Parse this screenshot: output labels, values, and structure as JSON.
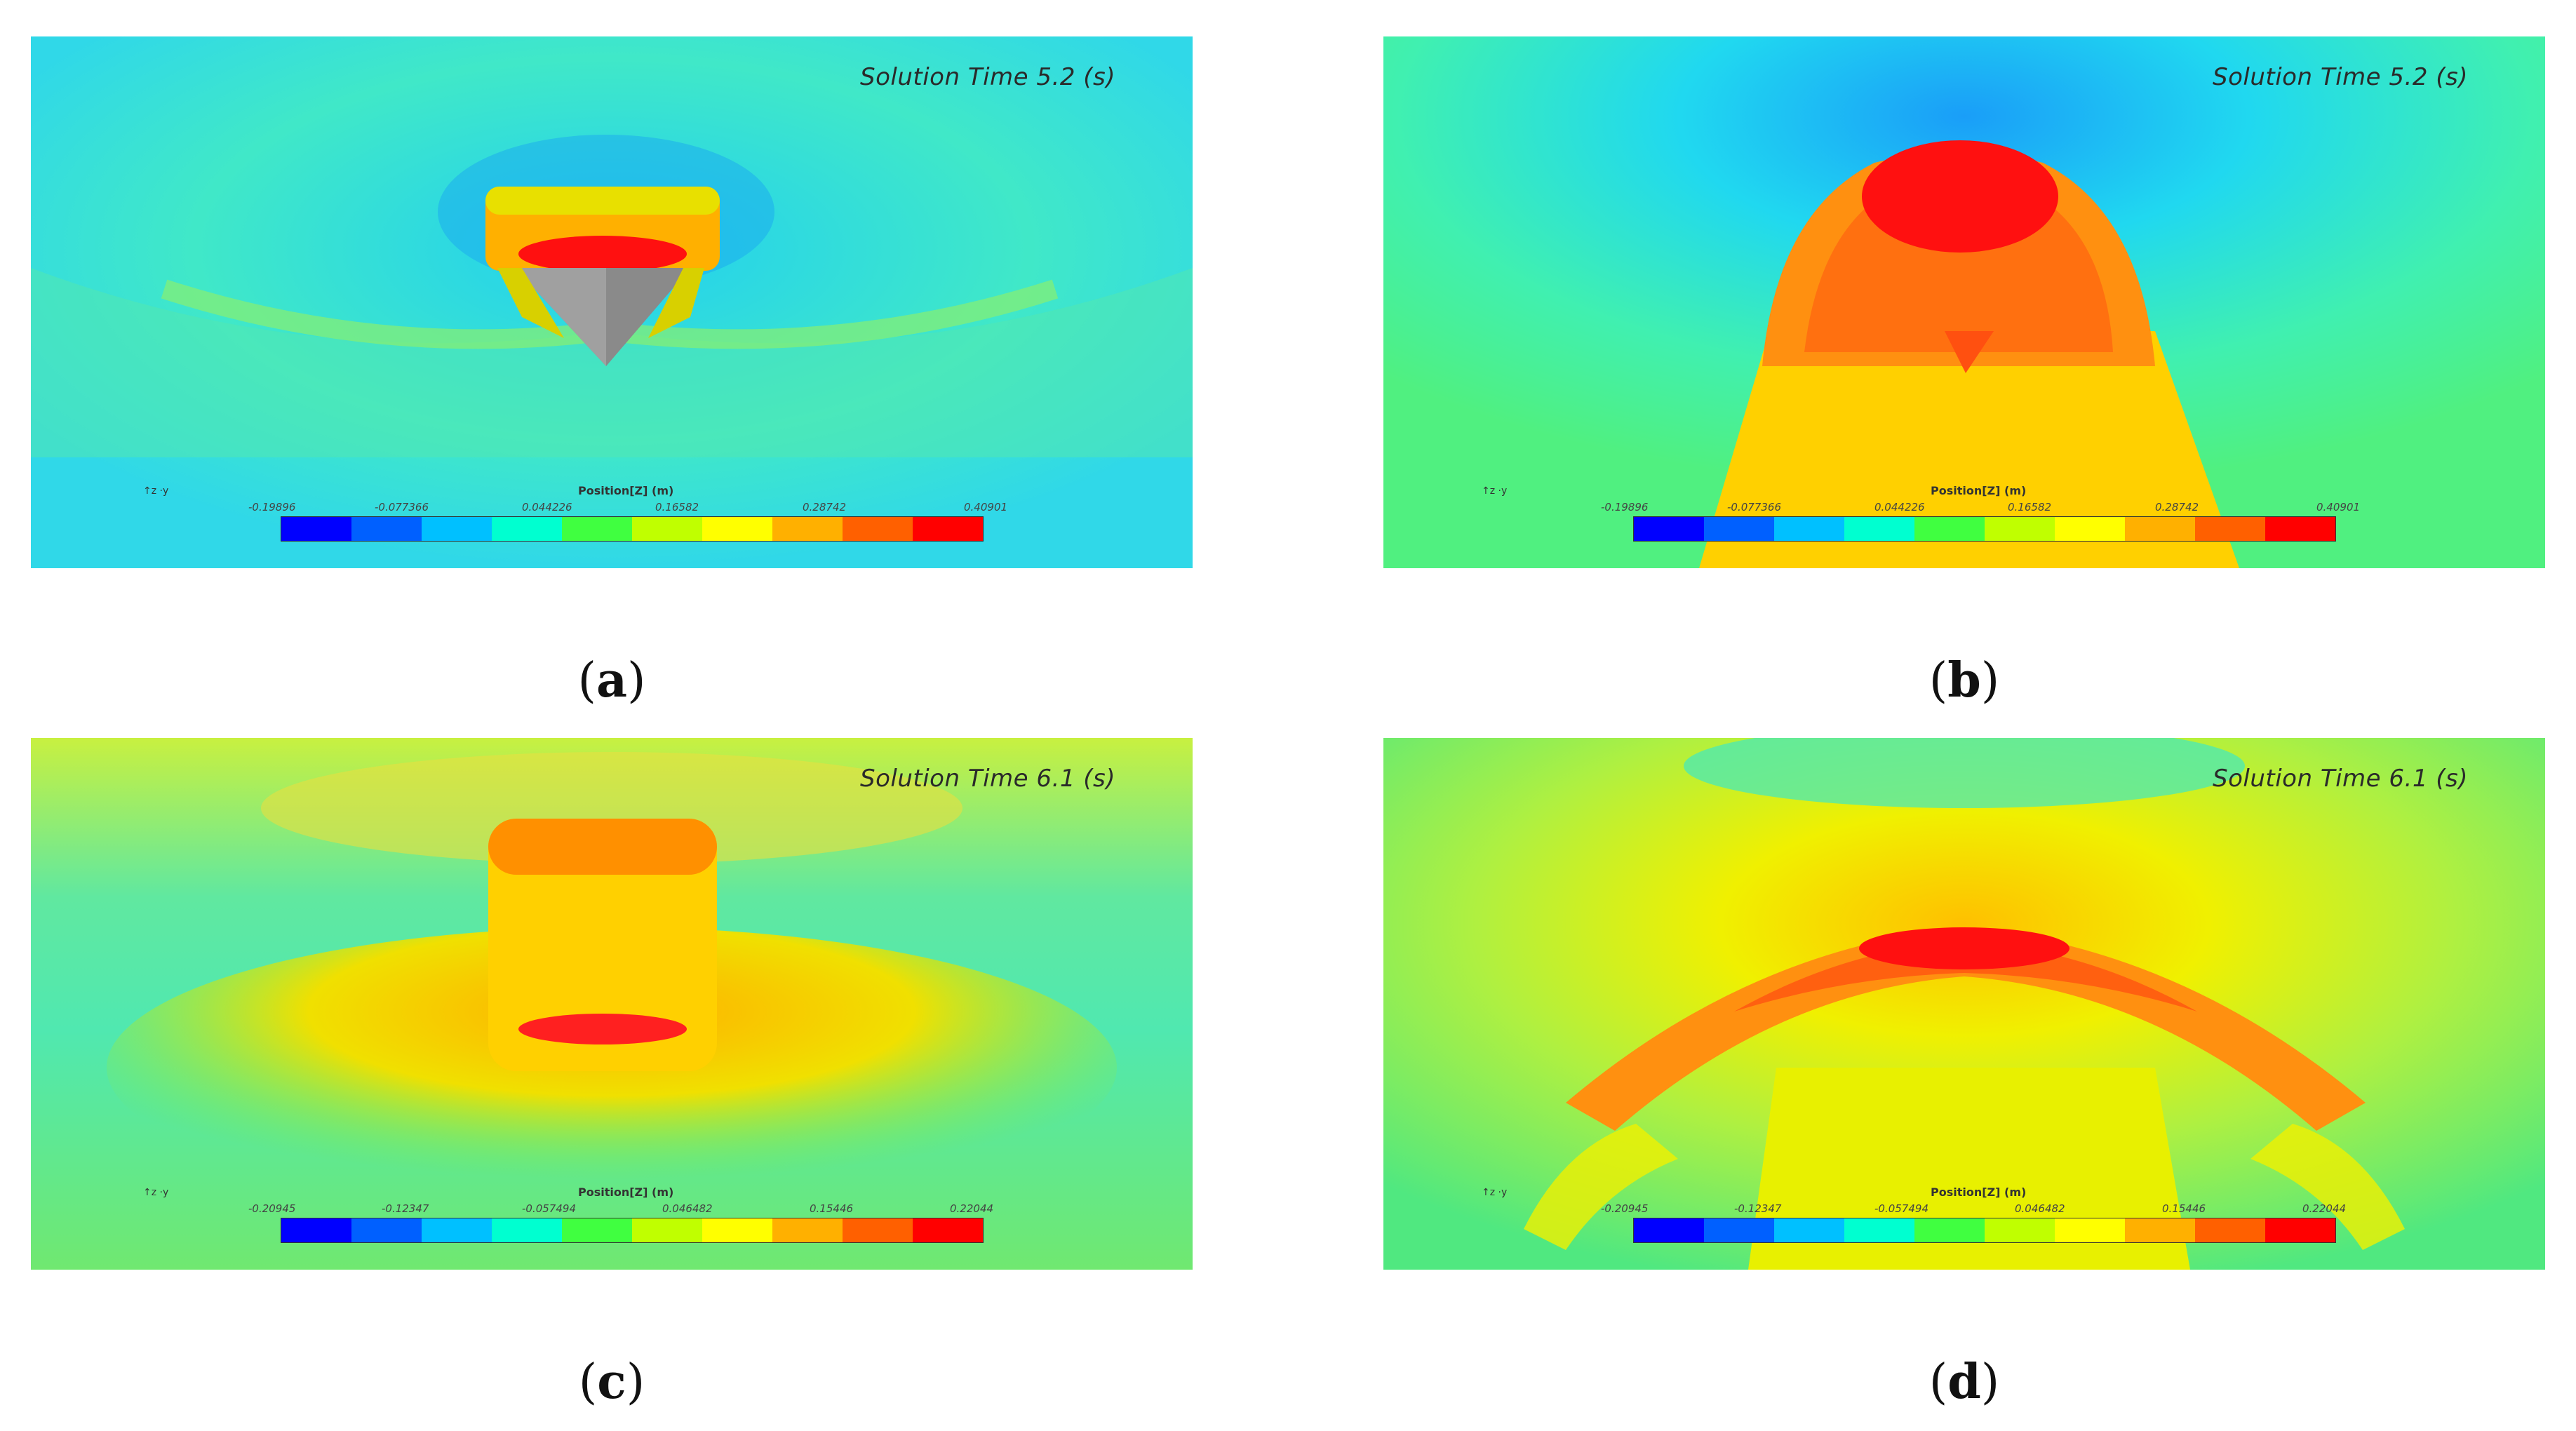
{
  "panels": [
    {
      "id": "a",
      "label": "a",
      "solution_time": "Solution Time 5.2 (s)",
      "legend_title": "Position[Z] (m)",
      "ticks": [
        "-0.19896",
        "-0.077366",
        "0.044226",
        "0.16582",
        "0.28742",
        "0.40901"
      ]
    },
    {
      "id": "b",
      "label": "b",
      "solution_time": "Solution Time 5.2 (s)",
      "legend_title": "Position[Z] (m)",
      "ticks": [
        "-0.19896",
        "-0.077366",
        "0.044226",
        "0.16582",
        "0.28742",
        "0.40901"
      ]
    },
    {
      "id": "c",
      "label": "c",
      "solution_time": "Solution Time 6.1 (s)",
      "legend_title": "Position[Z] (m)",
      "ticks": [
        "-0.20945",
        "-0.12347",
        "-0.057494",
        "0.046482",
        "0.15446",
        "0.22044"
      ]
    },
    {
      "id": "d",
      "label": "d",
      "solution_time": "Solution Time 6.1 (s)",
      "legend_title": "Position[Z] (m)",
      "ticks": [
        "-0.20945",
        "-0.12347",
        "-0.057494",
        "0.046482",
        "0.15446",
        "0.22044"
      ]
    }
  ],
  "colormap": [
    "#0000ff",
    "#0060ff",
    "#00c0ff",
    "#00ffd0",
    "#40ff40",
    "#c0ff00",
    "#ffff00",
    "#ffb000",
    "#ff6000",
    "#ff0000"
  ]
}
